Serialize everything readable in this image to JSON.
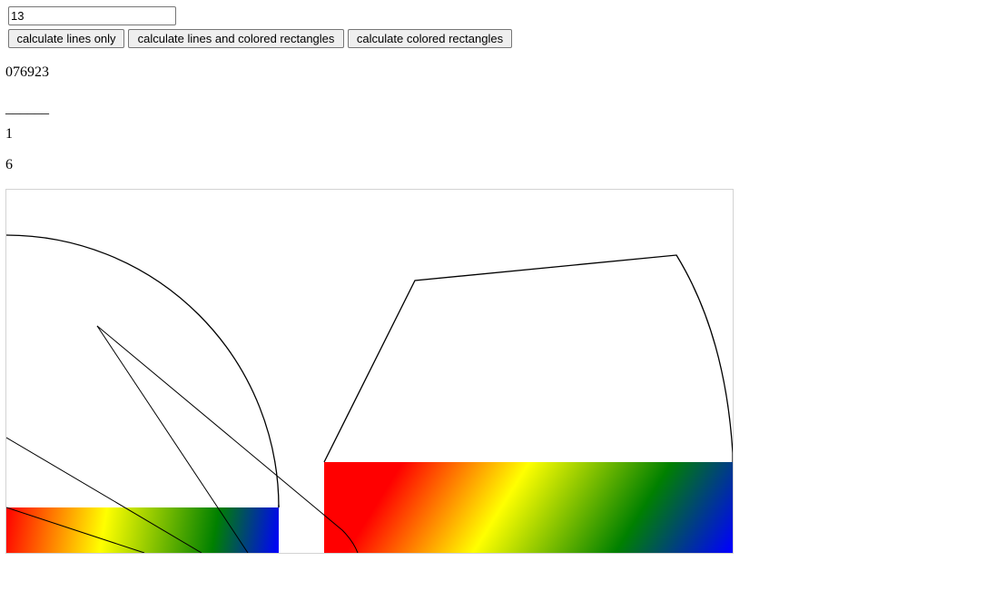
{
  "input": {
    "value": "13"
  },
  "buttons": {
    "lines_only": "calculate lines only",
    "lines_and_rects": "calculate lines and colored rectangles",
    "rects_only": "calculate colored rectangles"
  },
  "output": {
    "digits": "076923",
    "divider": "______",
    "first": "1",
    "second": "6"
  },
  "gradient_colors": [
    "#ff0000",
    "#ffff00",
    "#008000",
    "#0000ff"
  ]
}
